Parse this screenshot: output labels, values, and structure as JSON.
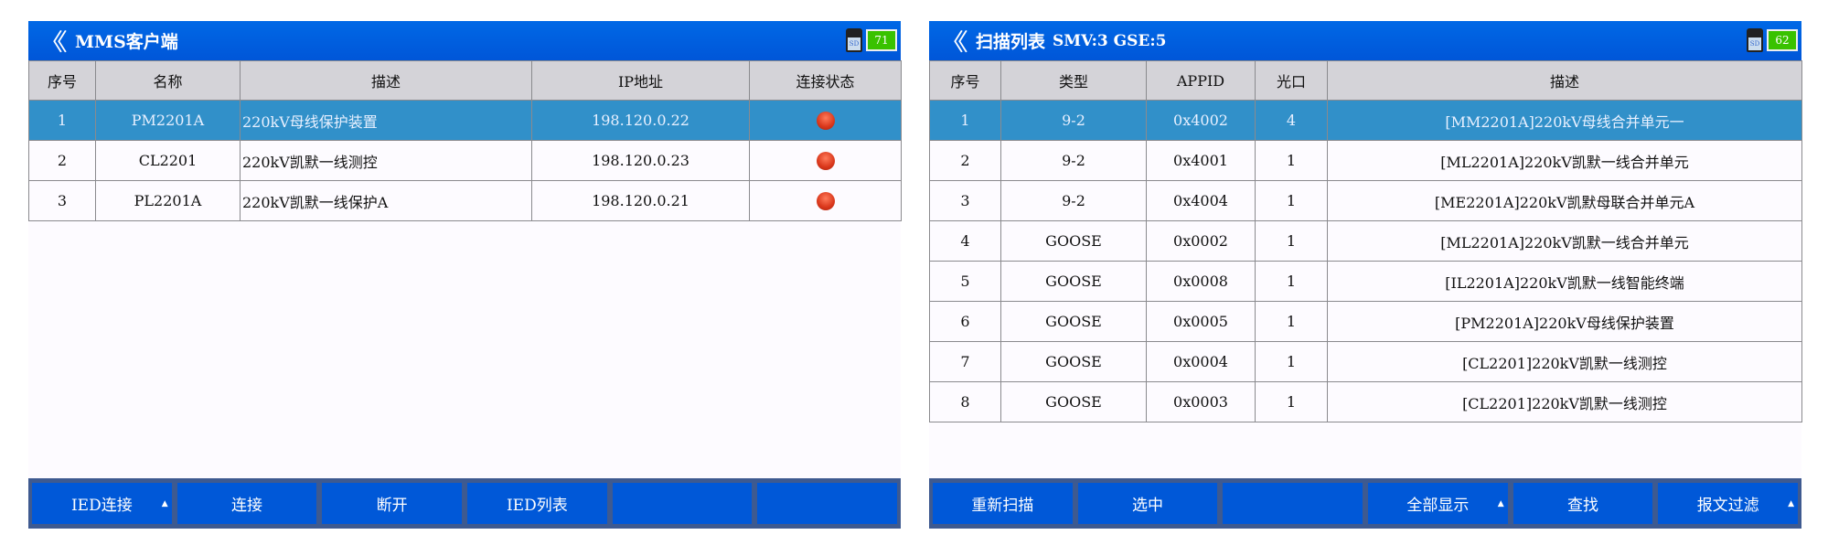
{
  "left": {
    "title": "MMS客户端",
    "battery": "71",
    "columns": [
      "序号",
      "名称",
      "描述",
      "IP地址",
      "连接状态"
    ],
    "rows": [
      {
        "no": "1",
        "name": "PM2201A",
        "desc": "220kV母线保护装置",
        "ip": "198.120.0.22",
        "status": "disconnected"
      },
      {
        "no": "2",
        "name": "CL2201",
        "desc": "220kV凯默一线测控",
        "ip": "198.120.0.23",
        "status": "disconnected"
      },
      {
        "no": "3",
        "name": "PL2201A",
        "desc": "220kV凯默一线保护A",
        "ip": "198.120.0.21",
        "status": "disconnected"
      }
    ],
    "buttons": [
      "IED连接",
      "连接",
      "断开",
      "IED列表",
      "",
      ""
    ]
  },
  "right": {
    "title": "扫描列表",
    "counts": "SMV:3 GSE:5",
    "battery": "62",
    "columns": [
      "序号",
      "类型",
      "APPID",
      "光口",
      "描述"
    ],
    "rows": [
      {
        "no": "1",
        "type": "9-2",
        "appid": "0x4002",
        "port": "4",
        "desc": "[MM2201A]220kV母线合并单元一"
      },
      {
        "no": "2",
        "type": "9-2",
        "appid": "0x4001",
        "port": "1",
        "desc": "[ML2201A]220kV凯默一线合并单元"
      },
      {
        "no": "3",
        "type": "9-2",
        "appid": "0x4004",
        "port": "1",
        "desc": "[ME2201A]220kV凯默母联合并单元A"
      },
      {
        "no": "4",
        "type": "GOOSE",
        "appid": "0x0002",
        "port": "1",
        "desc": "[ML2201A]220kV凯默一线合并单元"
      },
      {
        "no": "5",
        "type": "GOOSE",
        "appid": "0x0008",
        "port": "1",
        "desc": "[IL2201A]220kV凯默一线智能终端"
      },
      {
        "no": "6",
        "type": "GOOSE",
        "appid": "0x0005",
        "port": "1",
        "desc": "[PM2201A]220kV母线保护装置"
      },
      {
        "no": "7",
        "type": "GOOSE",
        "appid": "0x0004",
        "port": "1",
        "desc": "[CL2201]220kV凯默一线测控"
      },
      {
        "no": "8",
        "type": "GOOSE",
        "appid": "0x0003",
        "port": "1",
        "desc": "[CL2201]220kV凯默一线测控"
      }
    ],
    "buttons": [
      "重新扫描",
      "选中",
      "",
      "全部显示",
      "查找",
      "报文过滤"
    ]
  },
  "colors": {
    "titlebar": "#0060e0",
    "selected_row": "#3190c9",
    "button": "#0058d8",
    "status_dot": "#d9361a"
  }
}
